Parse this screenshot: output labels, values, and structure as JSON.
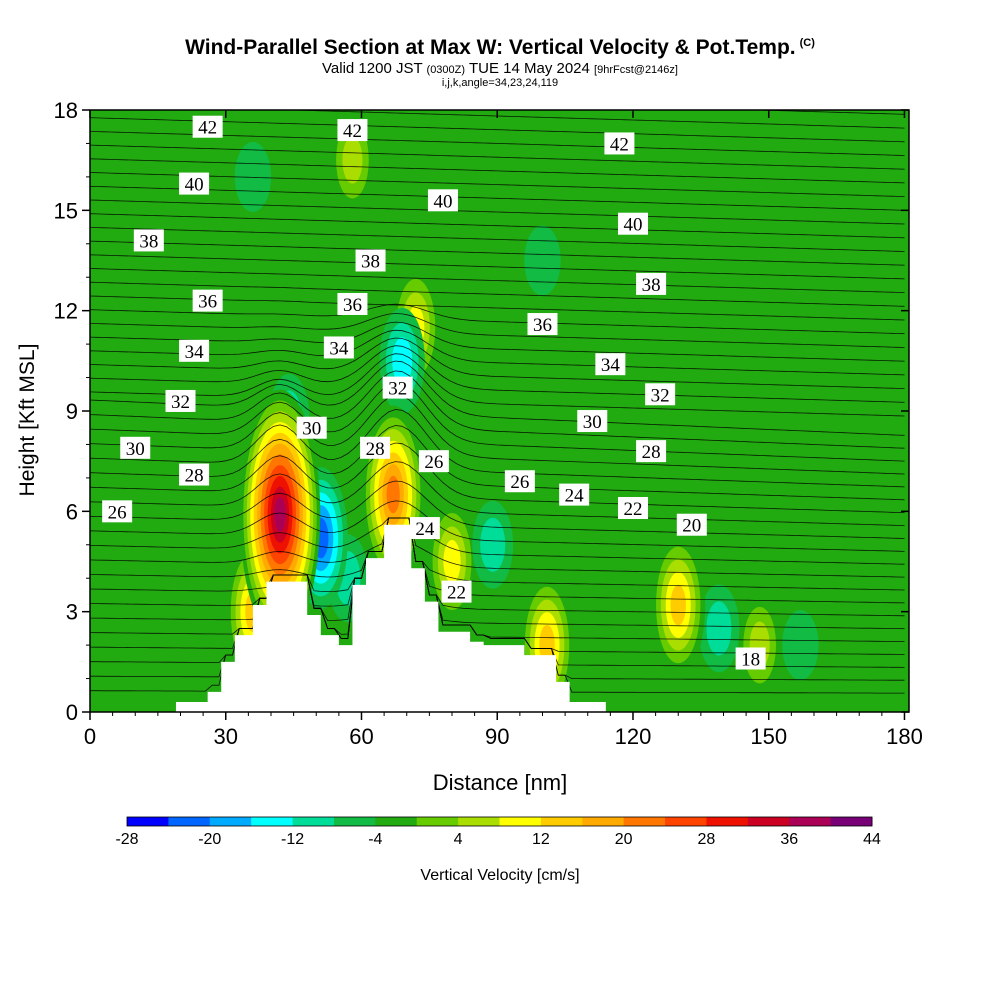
{
  "title": "Wind-Parallel Section at Max W: Vertical Velocity & Pot.Temp.",
  "copyright_mark": "(C)",
  "subtitle": {
    "valid_prefix": "Valid 1200 JST",
    "utc_time": "(0300Z)",
    "date": "TUE 14 May 2024",
    "forecast": "[9hrFcst@2146z]"
  },
  "subsub": "i,j,k,angle=34,23,24,119",
  "chart_data": {
    "type": "heatmap",
    "xlabel": "Distance [nm]",
    "ylabel": "Height [Kft MSL]",
    "xlim": [
      0,
      181
    ],
    "ylim": [
      0,
      18
    ],
    "xticks": [
      0,
      30,
      60,
      90,
      120,
      150,
      180
    ],
    "yticks": [
      0,
      3,
      6,
      9,
      12,
      15,
      18
    ],
    "colorbar": {
      "label": "Vertical Velocity [cm/s]",
      "tick_labels": [
        "-28",
        "-20",
        "-12",
        "-4",
        "4",
        "12",
        "20",
        "28",
        "36",
        "44"
      ],
      "min": -28,
      "max": 44,
      "step": 4,
      "colors": [
        "#0000ff",
        "#0066ff",
        "#00aaff",
        "#00ffff",
        "#00dd99",
        "#11bb44",
        "#22aa11",
        "#66cc00",
        "#aadd00",
        "#ffff00",
        "#ffcc00",
        "#ffaa00",
        "#ff7700",
        "#ff4400",
        "#ee1100",
        "#cc0022",
        "#aa0055",
        "#770077"
      ]
    },
    "terrain_kft": [
      [
        0,
        0
      ],
      [
        19,
        0
      ],
      [
        19,
        0.3
      ],
      [
        26,
        0.3
      ],
      [
        26,
        0.6
      ],
      [
        29,
        0.6
      ],
      [
        29,
        1.5
      ],
      [
        32,
        1.5
      ],
      [
        32,
        2.3
      ],
      [
        36,
        2.3
      ],
      [
        36,
        3.2
      ],
      [
        39,
        3.2
      ],
      [
        39,
        3.9
      ],
      [
        48,
        3.9
      ],
      [
        48,
        2.9
      ],
      [
        51,
        2.9
      ],
      [
        51,
        2.3
      ],
      [
        55,
        2.3
      ],
      [
        55,
        2.0
      ],
      [
        58,
        2.0
      ],
      [
        58,
        3.8
      ],
      [
        61,
        3.8
      ],
      [
        61,
        4.6
      ],
      [
        65,
        4.6
      ],
      [
        65,
        5.6
      ],
      [
        71,
        5.6
      ],
      [
        71,
        4.3
      ],
      [
        74,
        4.3
      ],
      [
        74,
        3.3
      ],
      [
        77,
        3.3
      ],
      [
        77,
        2.4
      ],
      [
        84,
        2.4
      ],
      [
        84,
        2.1
      ],
      [
        87,
        2.1
      ],
      [
        87,
        2.0
      ],
      [
        96,
        2.0
      ],
      [
        96,
        1.7
      ],
      [
        103,
        1.7
      ],
      [
        103,
        0.9
      ],
      [
        106,
        0.9
      ],
      [
        106,
        0.3
      ],
      [
        114,
        0.3
      ],
      [
        114,
        0
      ],
      [
        181,
        0
      ]
    ],
    "updrafts": [
      {
        "x": 42,
        "z": 5.9,
        "w": 40
      },
      {
        "x": 67,
        "z": 6.5,
        "w": 24
      },
      {
        "x": 72,
        "z": 11.5,
        "w": 12
      },
      {
        "x": 36,
        "z": 3.0,
        "w": 14
      },
      {
        "x": 80,
        "z": 4.5,
        "w": 10
      },
      {
        "x": 101,
        "z": 2.0,
        "w": 14
      },
      {
        "x": 130,
        "z": 3.2,
        "w": 14
      },
      {
        "x": 148,
        "z": 2.0,
        "w": 8
      },
      {
        "x": 58,
        "z": 16.5,
        "w": 6
      }
    ],
    "downdrafts": [
      {
        "x": 51,
        "z": 5.2,
        "w": -22
      },
      {
        "x": 57,
        "z": 4.0,
        "w": -13
      },
      {
        "x": 44,
        "z": 8.8,
        "w": -12
      },
      {
        "x": 69,
        "z": 10.5,
        "w": -16
      },
      {
        "x": 89,
        "z": 5.0,
        "w": -10
      },
      {
        "x": 139,
        "z": 2.5,
        "w": -12
      },
      {
        "x": 157,
        "z": 2.0,
        "w": -9
      },
      {
        "x": 100,
        "z": 13.5,
        "w": -6
      },
      {
        "x": 36,
        "z": 16.0,
        "w": -6
      }
    ],
    "theta_labels": [
      {
        "text": "42",
        "x": 26,
        "z": 17.5
      },
      {
        "text": "42",
        "x": 58,
        "z": 17.4
      },
      {
        "text": "42",
        "x": 117,
        "z": 17.0
      },
      {
        "text": "40",
        "x": 23,
        "z": 15.8
      },
      {
        "text": "40",
        "x": 78,
        "z": 15.3
      },
      {
        "text": "40",
        "x": 120,
        "z": 14.6
      },
      {
        "text": "38",
        "x": 13,
        "z": 14.1
      },
      {
        "text": "38",
        "x": 62,
        "z": 13.5
      },
      {
        "text": "38",
        "x": 124,
        "z": 12.8
      },
      {
        "text": "36",
        "x": 26,
        "z": 12.3
      },
      {
        "text": "36",
        "x": 58,
        "z": 12.2
      },
      {
        "text": "36",
        "x": 100,
        "z": 11.6
      },
      {
        "text": "34",
        "x": 23,
        "z": 10.8
      },
      {
        "text": "34",
        "x": 55,
        "z": 10.9
      },
      {
        "text": "34",
        "x": 115,
        "z": 10.4
      },
      {
        "text": "32",
        "x": 20,
        "z": 9.3
      },
      {
        "text": "32",
        "x": 68,
        "z": 9.7
      },
      {
        "text": "32",
        "x": 126,
        "z": 9.5
      },
      {
        "text": "30",
        "x": 10,
        "z": 7.9
      },
      {
        "text": "30",
        "x": 49,
        "z": 8.5
      },
      {
        "text": "30",
        "x": 111,
        "z": 8.7
      },
      {
        "text": "28",
        "x": 23,
        "z": 7.1
      },
      {
        "text": "28",
        "x": 63,
        "z": 7.9
      },
      {
        "text": "28",
        "x": 124,
        "z": 7.8
      },
      {
        "text": "26",
        "x": 6,
        "z": 6.0
      },
      {
        "text": "26",
        "x": 76,
        "z": 7.5
      },
      {
        "text": "26",
        "x": 95,
        "z": 6.9
      },
      {
        "text": "24",
        "x": 107,
        "z": 6.5
      },
      {
        "text": "24",
        "x": 74,
        "z": 5.5
      },
      {
        "text": "22",
        "x": 120,
        "z": 6.1
      },
      {
        "text": "22",
        "x": 81,
        "z": 3.6
      },
      {
        "text": "20",
        "x": 133,
        "z": 5.6
      },
      {
        "text": "18",
        "x": 146,
        "z": 1.6
      }
    ]
  }
}
